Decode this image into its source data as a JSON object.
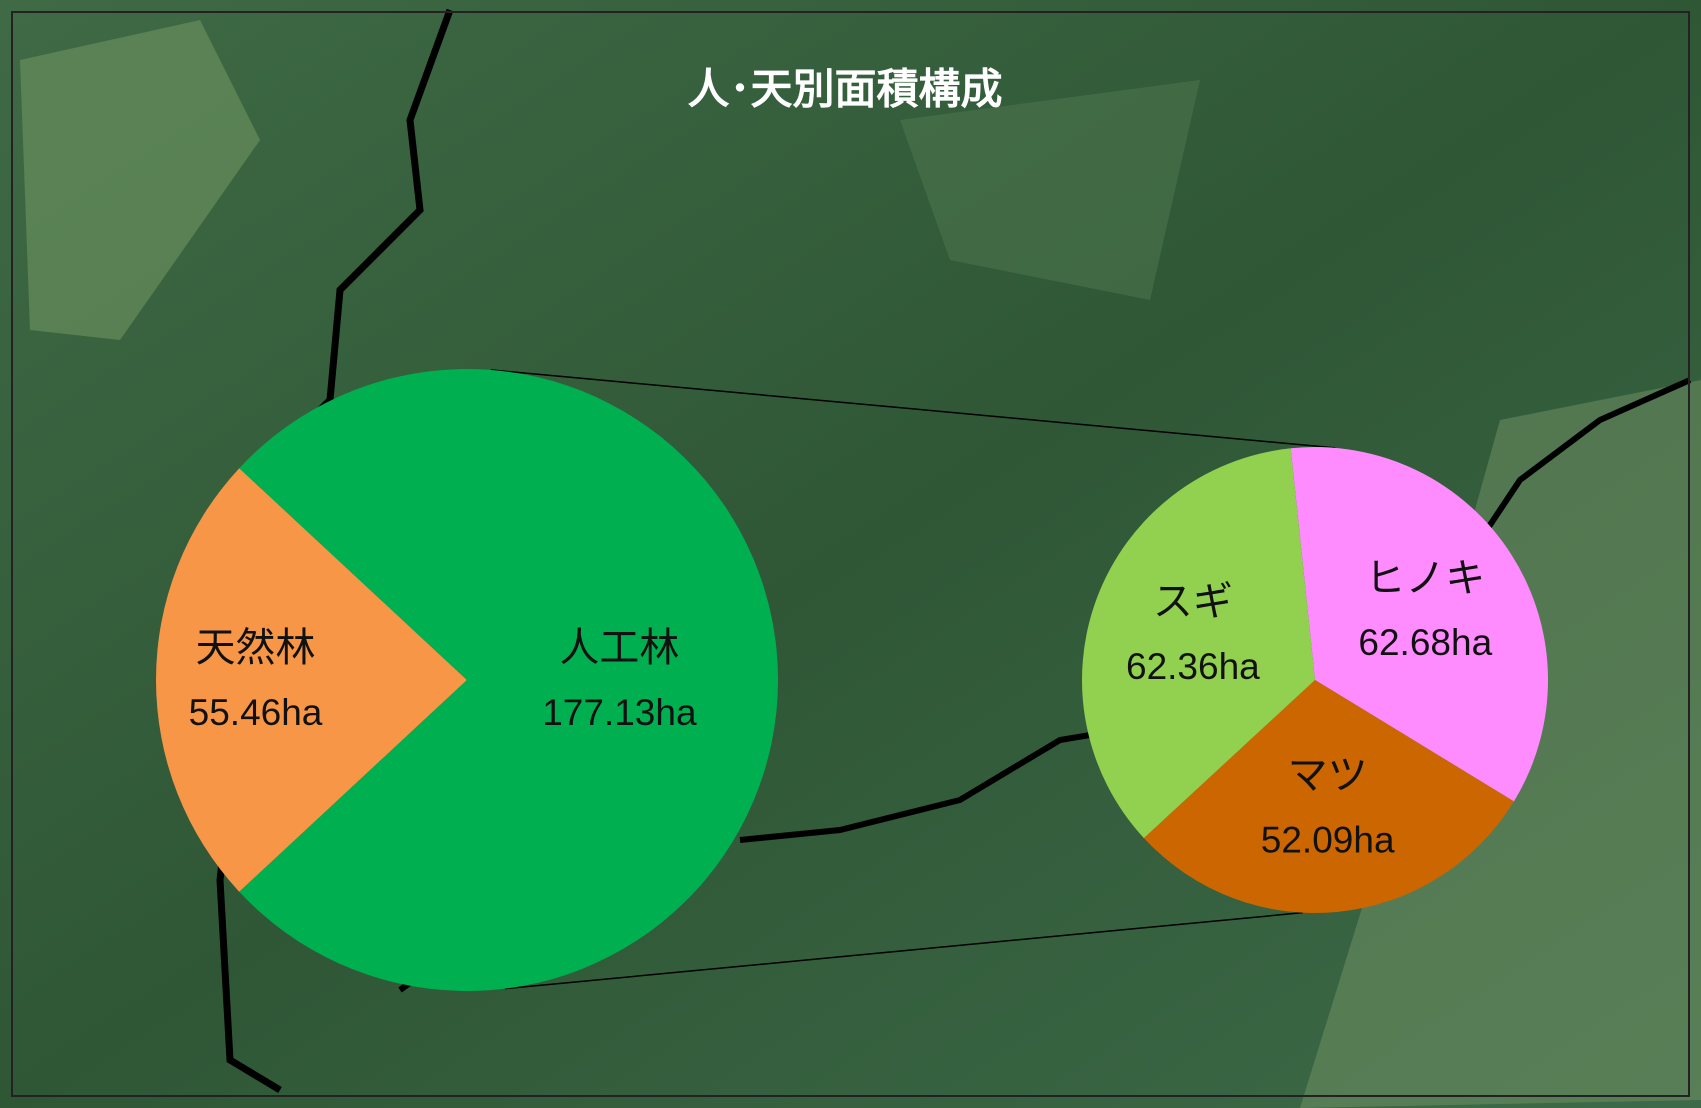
{
  "chart_data": {
    "type": "pie-of-pie",
    "title": "人･天別面積構成",
    "categories": [
      "天然林",
      "人工林"
    ],
    "values": [
      55.46,
      177.13
    ],
    "value_labels": [
      "55.46ha",
      "177.13ha"
    ],
    "colors": [
      "#f79646",
      "#00b050"
    ],
    "sub": {
      "categories": [
        "ヒノキ",
        "マツ",
        "スギ"
      ],
      "values": [
        62.68,
        52.09,
        62.36
      ],
      "value_labels": [
        "62.68ha",
        "52.09ha",
        "62.36ha"
      ],
      "colors": [
        "#ff8cff",
        "#cc6600",
        "#92d050"
      ]
    }
  }
}
